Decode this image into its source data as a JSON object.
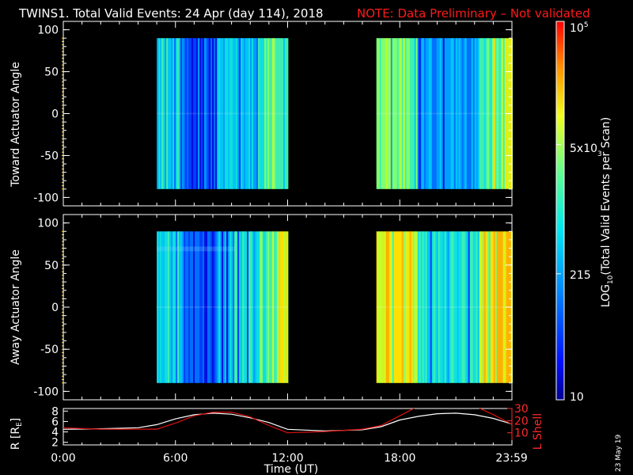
{
  "header": {
    "title": "TWINS1. Total Valid Events: 24 Apr (day 114), 2018",
    "note": "NOTE: Data Preliminary – Not validated",
    "note_color": "#ff1a1a"
  },
  "footer": {
    "date_stamp": "23 May 19"
  },
  "chart_data": [
    {
      "type": "heatmap",
      "panel": "top",
      "ylabel": "Toward Actuator Angle",
      "ylim": [
        -110,
        110
      ],
      "yticks": [
        -100,
        -50,
        0,
        50,
        100
      ],
      "x_unit": "hours UT",
      "xlim": [
        0,
        24
      ],
      "coverage_hours": [
        [
          5,
          12
        ],
        [
          16.75,
          24
        ]
      ],
      "angle_range": [
        -90,
        90
      ],
      "color_scale": "log10 events per scan",
      "dominant_level_description": [
        "cyan-blue with dark blue band near 07:00–08:00",
        "green-yellow with blue bands near 19:00–22:00"
      ]
    },
    {
      "type": "heatmap",
      "panel": "middle",
      "ylabel": "Away Actuator Angle",
      "ylim": [
        -110,
        110
      ],
      "yticks": [
        -100,
        -50,
        0,
        50,
        100
      ],
      "xlim": [
        0,
        24
      ],
      "coverage_hours": [
        [
          5,
          12
        ],
        [
          16.75,
          24
        ]
      ],
      "angle_range": [
        -90,
        90
      ]
    },
    {
      "type": "line",
      "panel": "bottom",
      "xlabel": "Time (UT)",
      "xticks": [
        "0:00",
        "6:00",
        "12:00",
        "18:00",
        "23:59"
      ],
      "xtick_hours": [
        0,
        6,
        12,
        18,
        23.983
      ],
      "ylabel_left": "R [R_E]",
      "ylabel_right": "L Shell",
      "left_yticks": [
        2,
        4,
        6,
        8
      ],
      "left_ylim": [
        1.5,
        8.5
      ],
      "right_yticks": [
        10,
        20,
        30
      ],
      "right_ylim": [
        0,
        30
      ],
      "series": [
        {
          "name": "R [R_E]",
          "color": "#ffffff",
          "x": [
            0,
            2,
            4,
            5,
            6,
            7,
            8,
            9,
            10,
            11,
            12,
            14,
            16,
            17,
            18,
            19,
            20,
            21,
            22,
            23,
            24
          ],
          "y": [
            4.5,
            4.6,
            4.8,
            5.4,
            6.5,
            7.3,
            7.6,
            7.4,
            6.7,
            5.8,
            4.5,
            4.2,
            4.4,
            5.0,
            6.3,
            7.0,
            7.5,
            7.6,
            7.3,
            6.6,
            5.5
          ]
        },
        {
          "name": "L Shell",
          "color": "#dd1010",
          "x": [
            0,
            2,
            4,
            5,
            6,
            7,
            8,
            9,
            10,
            11,
            12,
            14,
            16,
            17,
            18,
            19,
            20,
            21,
            22,
            23,
            24
          ],
          "y": [
            14,
            13,
            13,
            13,
            18,
            24,
            27,
            27,
            23,
            16,
            10,
            11,
            13,
            16,
            24,
            32,
            34,
            34,
            32,
            25,
            17
          ]
        }
      ]
    },
    {
      "type": "colorbar",
      "label": "LOG10(Total Valid Events per Scan)",
      "tick_labels": [
        "10",
        "215",
        "5x10^3",
        "10^5"
      ],
      "tick_values": [
        10,
        215,
        5000,
        100000
      ],
      "scale": "log",
      "vmin": 10,
      "vmax": 100000
    }
  ],
  "labels": {
    "colorbar_ticks": [
      "10",
      "215",
      "5x10",
      "10"
    ],
    "colorbar_ticks_exp": [
      "",
      "",
      "3",
      "5"
    ],
    "colorbar_title_pre": "LOG",
    "colorbar_title_sub": "10",
    "colorbar_title_post": "(Total Valid Events per Scan)",
    "r_axis_pre": "R [R",
    "r_axis_sub": "E",
    "r_axis_post": "]",
    "l_axis": "L Shell"
  }
}
